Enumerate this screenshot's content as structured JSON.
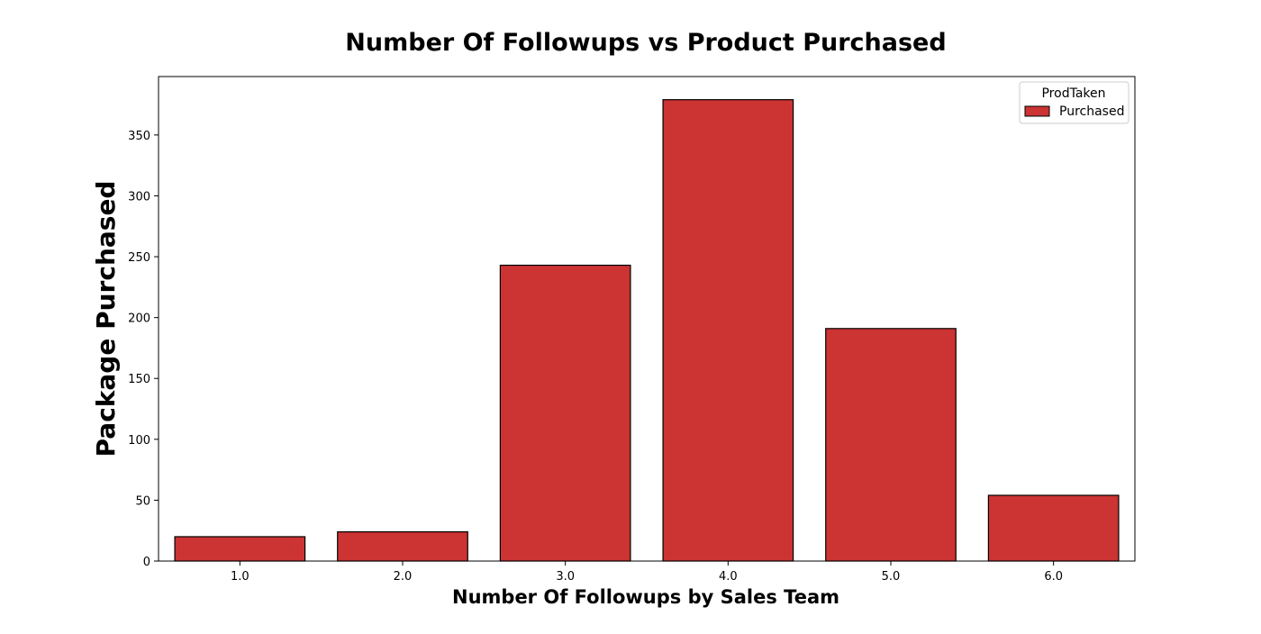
{
  "chart_data": {
    "type": "bar",
    "title": "Number Of Followups vs Product Purchased",
    "xlabel": "Number Of Followups by Sales Team",
    "ylabel": "Package Purchased",
    "categories": [
      "1.0",
      "2.0",
      "3.0",
      "4.0",
      "5.0",
      "6.0"
    ],
    "series": [
      {
        "name": "Purchased",
        "values": [
          20,
          24,
          243,
          379,
          191,
          54
        ]
      }
    ],
    "ylim": [
      0,
      398
    ],
    "yticks": [
      0,
      50,
      100,
      150,
      200,
      250,
      300,
      350
    ],
    "grid": false,
    "legend": {
      "title": "ProdTaken",
      "position": "top-right"
    },
    "colors": {
      "bar": "#cc3333",
      "bar_edge": "#000000"
    }
  }
}
